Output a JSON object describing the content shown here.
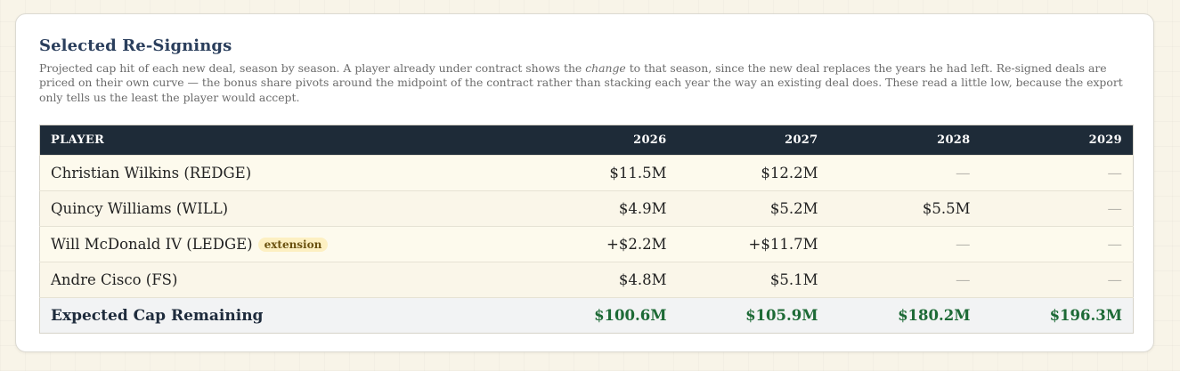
{
  "panel": {
    "title": "Selected Re-Signings",
    "description_before": "Projected cap hit of each new deal, season by season. A player already under contract shows the ",
    "description_em": "change",
    "description_after": " to that season, since the new deal replaces the years he had left. Re-signed deals are priced on their own curve — the bonus share pivots around the midpoint of the contract rather than stacking each year the way an existing deal does. These read a little low, because the export only tells us the least the player would accept."
  },
  "table": {
    "columns": [
      "Player",
      "2026",
      "2027",
      "2028",
      "2029"
    ],
    "rows": [
      {
        "player": "Christian Wilkins (REDGE)",
        "badge": "",
        "values": [
          "$11.5M",
          "$12.2M",
          "—",
          "—"
        ]
      },
      {
        "player": "Quincy Williams (WILL)",
        "badge": "",
        "values": [
          "$4.9M",
          "$5.2M",
          "$5.5M",
          "—"
        ]
      },
      {
        "player": "Will McDonald IV (LEDGE)",
        "badge": "extension",
        "values": [
          "+$2.2M",
          "+$11.7M",
          "—",
          "—"
        ]
      },
      {
        "player": "Andre Cisco (FS)",
        "badge": "",
        "values": [
          "$4.8M",
          "$5.1M",
          "—",
          "—"
        ]
      }
    ],
    "total": {
      "label": "Expected Cap Remaining",
      "values": [
        "$100.6M",
        "$105.9M",
        "$180.2M",
        "$196.3M"
      ]
    }
  },
  "colors": {
    "header_bg": "#1e2b38",
    "title": "#2a3e5c",
    "positive_total": "#1d6a36",
    "badge_bg": "#fdf0c2",
    "badge_text": "#6b5210"
  }
}
